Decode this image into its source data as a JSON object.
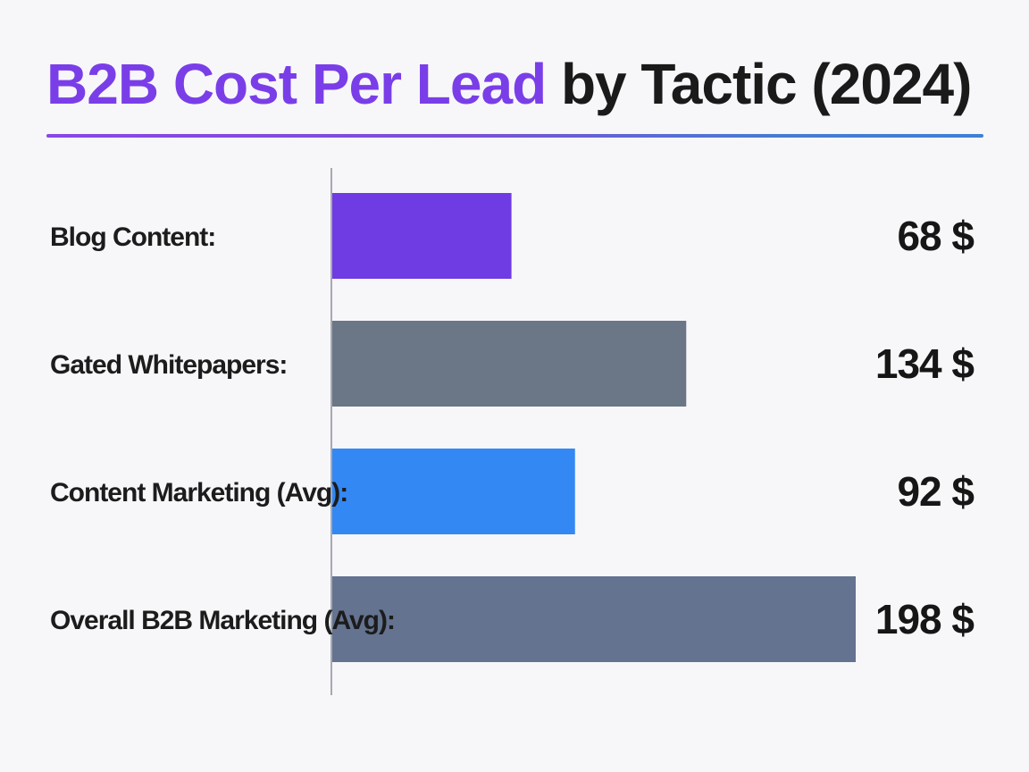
{
  "chart_data": {
    "type": "bar",
    "orientation": "horizontal",
    "title_accent": "B2B Cost Per Lead",
    "title_rest": "by Tactic (2024)",
    "categories": [
      "Blog Content:",
      "Gated Whitepapers:",
      "Content Marketing (Avg):",
      "Overall B2B Marketing (Avg):"
    ],
    "values": [
      68,
      134,
      92,
      198
    ],
    "value_labels": [
      "68 $",
      "134 $",
      "92 $",
      "198 $"
    ],
    "colors": [
      "#6f3be3",
      "#6b7686",
      "#3388f4",
      "#637390"
    ],
    "xlim": [
      0,
      210
    ],
    "grid": false,
    "legend": "none"
  }
}
